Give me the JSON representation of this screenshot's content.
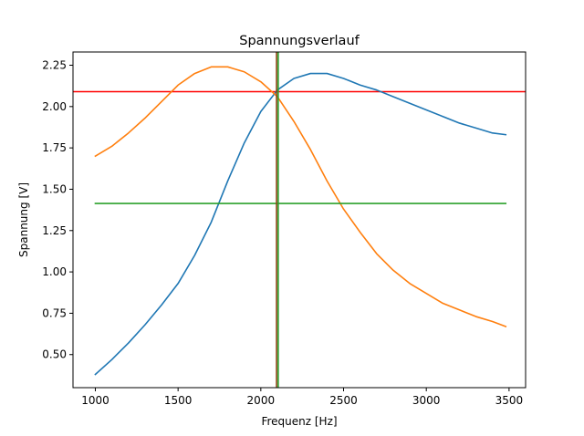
{
  "chart_data": {
    "type": "line",
    "title": "Spannungsverlauf",
    "xlabel": "Frequenz [Hz]",
    "ylabel": "Spannung [V]",
    "xlim": [
      865,
      3600
    ],
    "ylim": [
      0.3,
      2.33
    ],
    "xticks": [
      1000,
      1500,
      2000,
      2500,
      3000,
      3500
    ],
    "yticks": [
      0.5,
      0.75,
      1.0,
      1.25,
      1.5,
      1.75,
      2.0,
      2.25
    ],
    "ytick_decimals": 2,
    "grid": false,
    "series": [
      {
        "color": "#1f77b4",
        "x": [
          1000,
          1100,
          1200,
          1300,
          1400,
          1500,
          1600,
          1700,
          1800,
          1900,
          2000,
          2100,
          2200,
          2300,
          2400,
          2500,
          2600,
          2700,
          2800,
          2900,
          3000,
          3100,
          3200,
          3300,
          3400,
          3480
        ],
        "y": [
          0.38,
          0.47,
          0.57,
          0.68,
          0.8,
          0.93,
          1.1,
          1.3,
          1.55,
          1.78,
          1.97,
          2.1,
          2.17,
          2.2,
          2.2,
          2.17,
          2.13,
          2.1,
          2.06,
          2.02,
          1.98,
          1.94,
          1.9,
          1.87,
          1.84,
          1.83
        ]
      },
      {
        "color": "#ff7f0e",
        "x": [
          1000,
          1100,
          1200,
          1300,
          1400,
          1500,
          1600,
          1700,
          1800,
          1900,
          2000,
          2100,
          2200,
          2300,
          2400,
          2500,
          2600,
          2700,
          2800,
          2900,
          3000,
          3100,
          3200,
          3300,
          3400,
          3480
        ],
        "y": [
          1.7,
          1.76,
          1.84,
          1.93,
          2.03,
          2.13,
          2.2,
          2.24,
          2.24,
          2.21,
          2.15,
          2.06,
          1.91,
          1.74,
          1.55,
          1.38,
          1.24,
          1.11,
          1.01,
          0.93,
          0.87,
          0.81,
          0.77,
          0.73,
          0.7,
          0.67
        ]
      },
      {
        "color": "#2ca02c",
        "x": [
          1000,
          1500,
          2000,
          2500,
          3000,
          3480
        ],
        "y": [
          1.414,
          1.414,
          1.414,
          1.414,
          1.414,
          1.414
        ]
      }
    ],
    "hlines": [
      {
        "y": 2.09,
        "color": "#ff0000"
      }
    ],
    "vlines": [
      {
        "x": 2095,
        "color": "#8b4513"
      },
      {
        "x": 2105,
        "color": "#2ca02c"
      }
    ]
  }
}
